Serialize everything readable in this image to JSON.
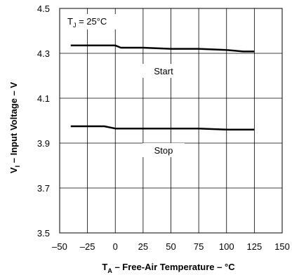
{
  "chart_data": {
    "type": "line",
    "xlabel": {
      "main": "T",
      "sub": "A",
      "rest": " – Free-Air Temperature – °C"
    },
    "ylabel": {
      "main": "V",
      "sub": "I",
      "rest": " – Input Voltage – V"
    },
    "xlim": [
      -50,
      150
    ],
    "ylim": [
      3.5,
      4.5
    ],
    "x_ticks": [
      "–50",
      "–25",
      "0",
      "25",
      "50",
      "75",
      "100",
      "125",
      "150"
    ],
    "x_tick_values": [
      -50,
      -25,
      0,
      25,
      50,
      75,
      100,
      125,
      150
    ],
    "y_ticks": [
      "3.5",
      "3.7",
      "3.9",
      "4.1",
      "4.3",
      "4.5"
    ],
    "y_tick_values": [
      3.5,
      3.7,
      3.9,
      4.1,
      4.3,
      4.5
    ],
    "grid": true,
    "condition": {
      "main": "T",
      "sub": "J",
      "rest": " = 25°C"
    },
    "series": [
      {
        "name": "Start",
        "x": [
          -40,
          -25,
          -10,
          0,
          5,
          25,
          50,
          75,
          100,
          115,
          125
        ],
        "y": [
          4.335,
          4.335,
          4.335,
          4.335,
          4.325,
          4.325,
          4.32,
          4.32,
          4.315,
          4.308,
          4.308
        ]
      },
      {
        "name": "Stop",
        "x": [
          -40,
          -25,
          -10,
          0,
          25,
          50,
          75,
          100,
          125
        ],
        "y": [
          3.975,
          3.975,
          3.975,
          3.965,
          3.965,
          3.965,
          3.965,
          3.96,
          3.96
        ]
      }
    ]
  }
}
